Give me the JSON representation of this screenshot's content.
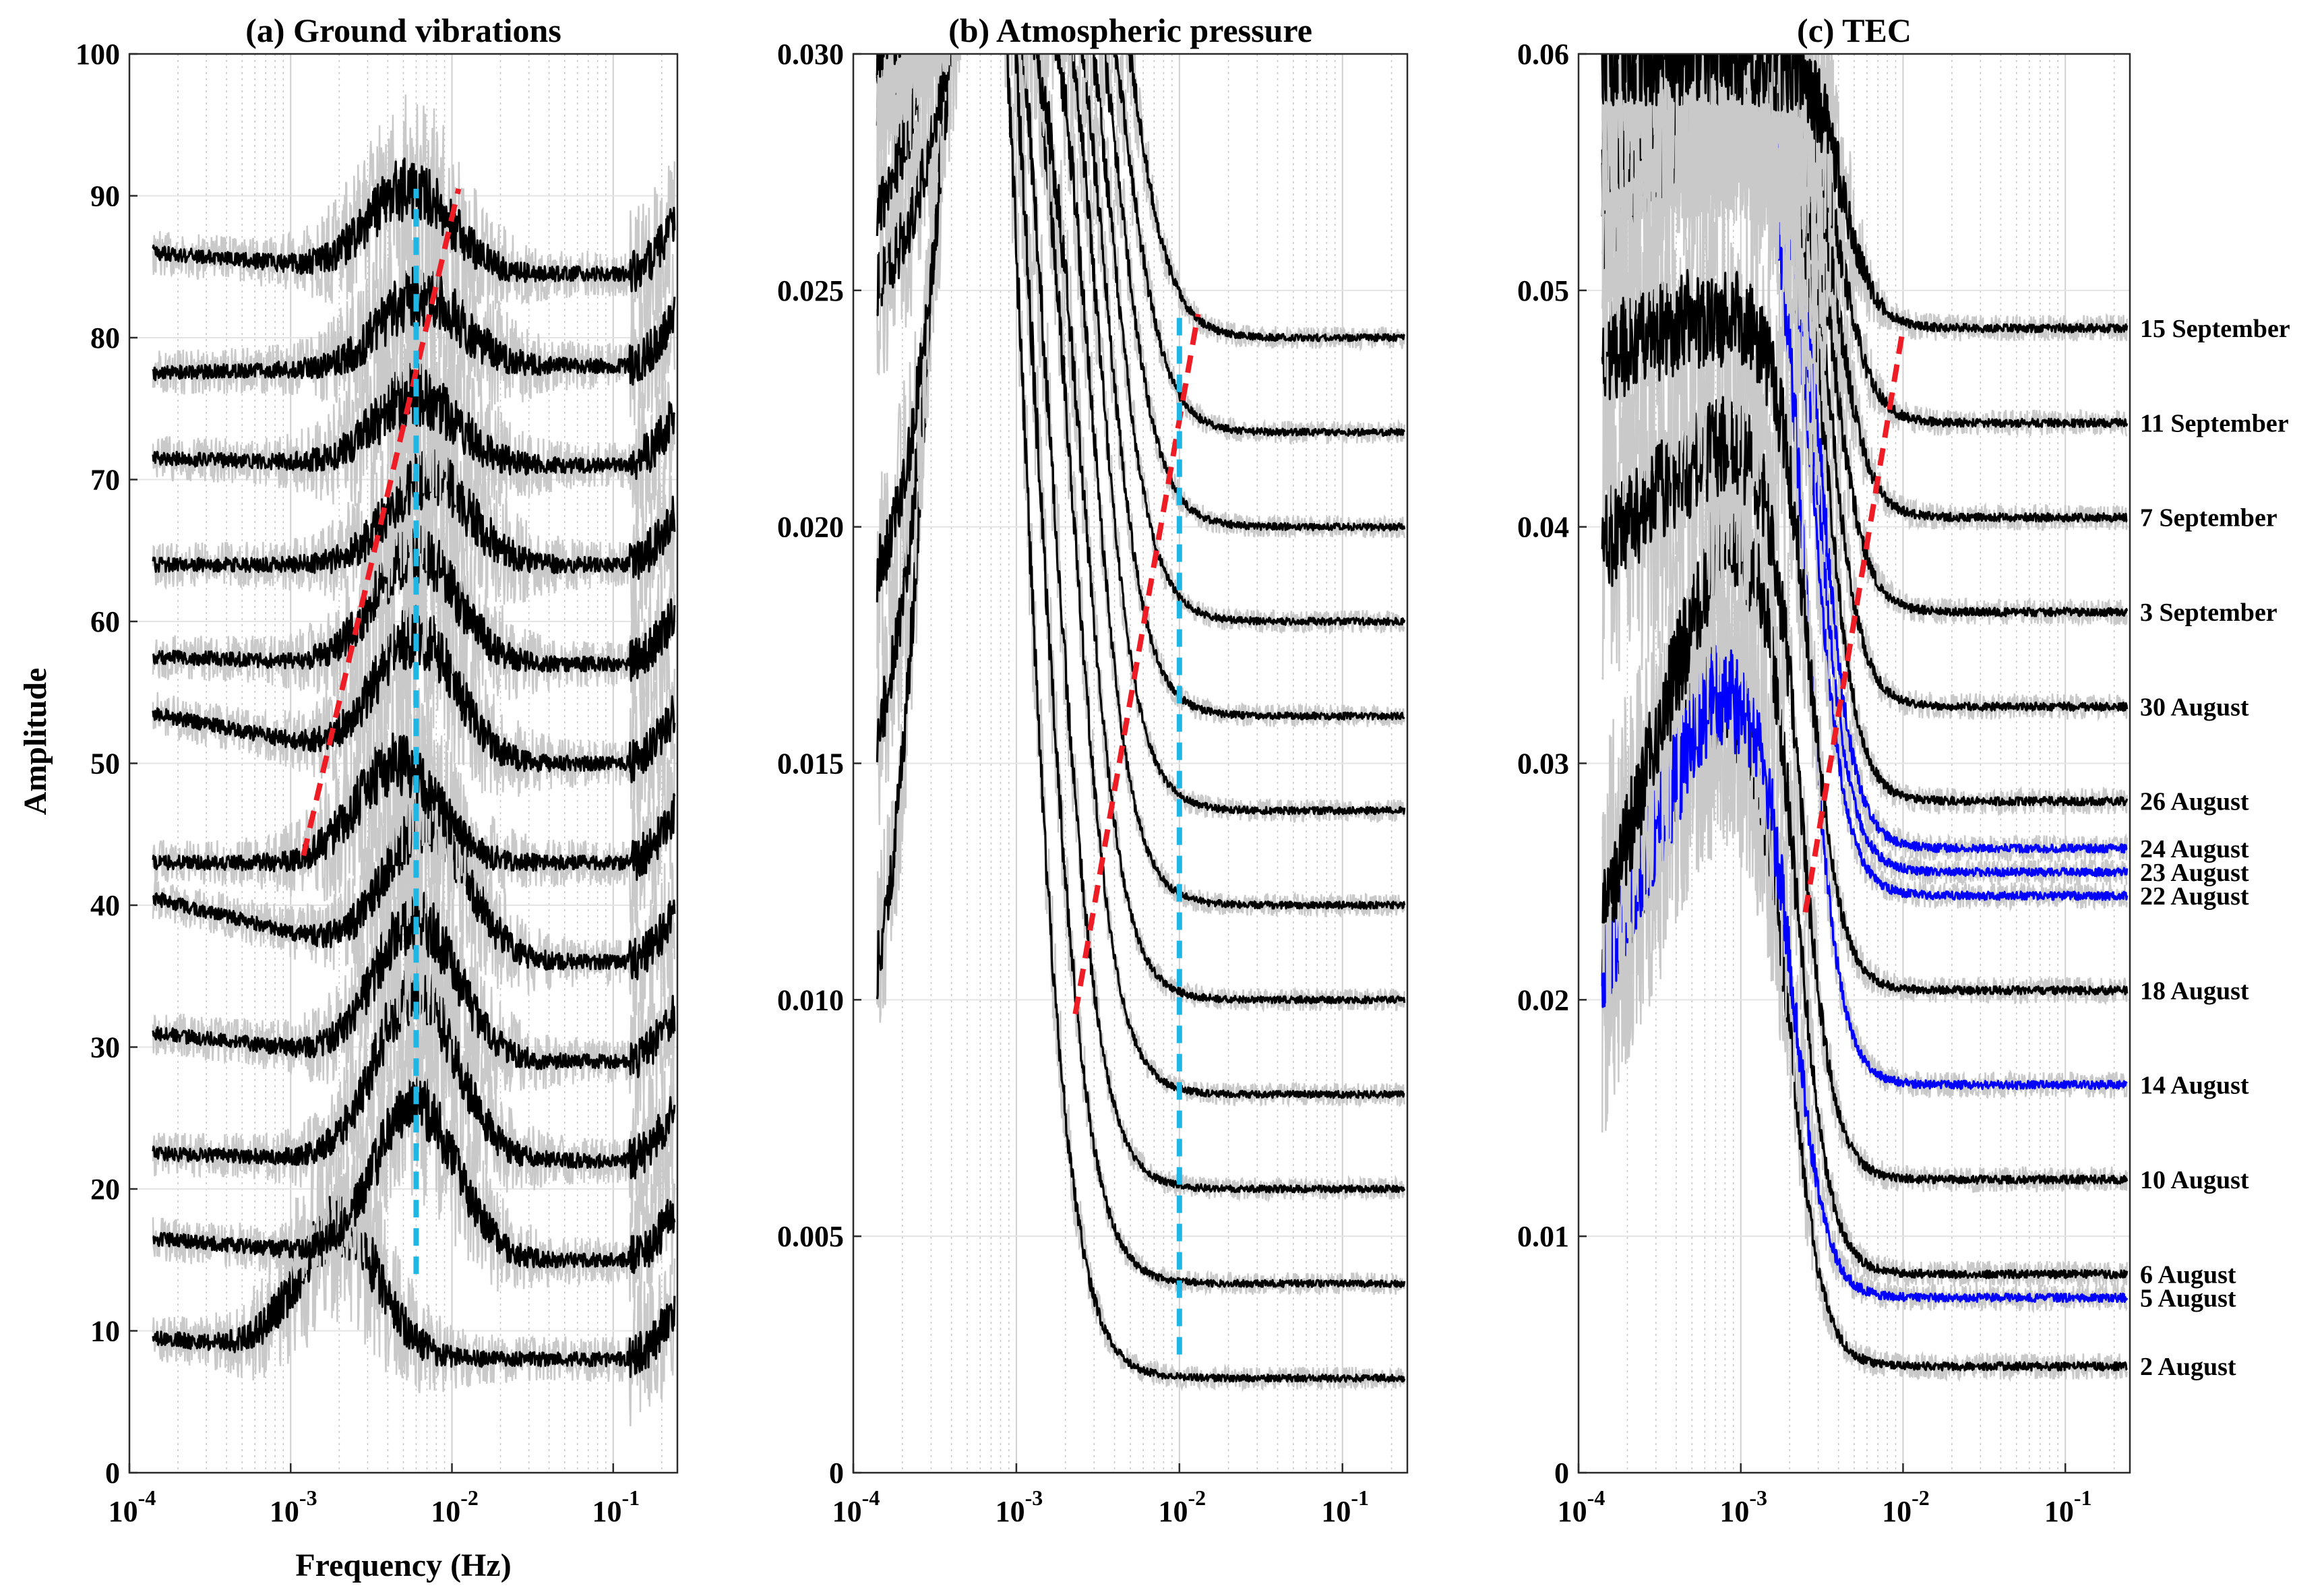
{
  "figure": {
    "ylabel": "Amplitude",
    "xlabel": "Frequency (Hz)"
  },
  "chart_data": [
    {
      "type": "line",
      "title": "(a) Ground vibrations",
      "xscale": "log",
      "xlim": [
        0.0001,
        0.25
      ],
      "ylim": [
        0,
        100
      ],
      "yticks": [
        "0",
        "10",
        "20",
        "30",
        "40",
        "50",
        "60",
        "70",
        "80",
        "90",
        "100"
      ],
      "xticks": [
        {
          "base": "10",
          "exp": "-4"
        },
        {
          "base": "10",
          "exp": "-3"
        },
        {
          "base": "10",
          "exp": "-2"
        },
        {
          "base": "10",
          "exp": "-1"
        }
      ],
      "xlabel": "Frequency (Hz)",
      "ylabel": "Amplitude",
      "series": [
        {
          "name": "2 August",
          "color": "#000000",
          "baseline": 8,
          "start": 9.5,
          "peak_freq": 0.002,
          "peak_height": 9
        },
        {
          "name": "5 August",
          "color": "#000000",
          "baseline": 15,
          "start": 16.5,
          "peak_freq": 0.006,
          "peak_height": 11
        },
        {
          "name": "6 August",
          "color": "#000000",
          "baseline": 22,
          "start": 22.5,
          "peak_freq": 0.006,
          "peak_height": 12
        },
        {
          "name": "10 August",
          "color": "#000000",
          "baseline": 29,
          "start": 31,
          "peak_freq": 0.006,
          "peak_height": 10
        },
        {
          "name": "14 August",
          "color": "#000000",
          "baseline": 36,
          "start": 40.5,
          "peak_freq": 0.007,
          "peak_height": 10
        },
        {
          "name": "18 August",
          "color": "#000000",
          "baseline": 43,
          "start": 43,
          "peak_freq": 0.0045,
          "peak_height": 7
        },
        {
          "name": "22 August",
          "color": "#000000",
          "baseline": 50,
          "start": 53.5,
          "peak_freq": 0.006,
          "peak_height": 9
        },
        {
          "name": "23 August",
          "color": "#000000",
          "baseline": 57,
          "start": 57.5,
          "peak_freq": 0.006,
          "peak_height": 8
        },
        {
          "name": "24 August",
          "color": "#000000",
          "baseline": 64,
          "start": 64,
          "peak_freq": 0.0072,
          "peak_height": 6
        },
        {
          "name": "26 August",
          "color": "#000000",
          "baseline": 71,
          "start": 71.5,
          "peak_freq": 0.006,
          "peak_height": 5
        },
        {
          "name": "30 August",
          "color": "#000000",
          "baseline": 78,
          "start": 77.5,
          "peak_freq": 0.0065,
          "peak_height": 5
        },
        {
          "name": "3 September",
          "color": "#000000",
          "baseline": 84.5,
          "start": 86,
          "peak_freq": 0.0055,
          "peak_height": 6
        }
      ],
      "trend_lines": [
        {
          "name": "red-dashed",
          "color": "#ee1c25",
          "points": [
            [
              0.0012,
              43.5
            ],
            [
              0.011,
              90.5
            ]
          ]
        },
        {
          "name": "cyan-dashed",
          "color": "#1fb6e3",
          "points": [
            [
              0.006,
              14
            ],
            [
              0.006,
              90.5
            ]
          ]
        }
      ]
    },
    {
      "type": "line",
      "title": "(b) Atmospheric pressure",
      "xscale": "log",
      "xlim": [
        0.0001,
        0.25
      ],
      "ylim": [
        0,
        0.03
      ],
      "yticks": [
        "0",
        "0.005",
        "0.010",
        "0.015",
        "0.020",
        "0.025",
        "0.030"
      ],
      "xticks": [
        {
          "base": "10",
          "exp": "-4"
        },
        {
          "base": "10",
          "exp": "-3"
        },
        {
          "base": "10",
          "exp": "-2"
        },
        {
          "base": "10",
          "exp": "-1"
        }
      ],
      "series": [
        {
          "name": "2 August",
          "color": "#000000",
          "baseline": 0.002,
          "start": 0.0093
        },
        {
          "name": "5 August",
          "color": "#000000",
          "baseline": 0.004,
          "start": 0.015
        },
        {
          "name": "6 August",
          "color": "#000000",
          "baseline": 0.006,
          "start": 0.0187
        },
        {
          "name": "10 August",
          "color": "#000000",
          "baseline": 0.008,
          "start": 0.025
        },
        {
          "name": "14 August",
          "color": "#000000",
          "baseline": 0.01,
          "start": 0.0265
        },
        {
          "name": "18 August",
          "color": "#000000",
          "baseline": 0.012,
          "start": 0.029
        },
        {
          "name": "22 August",
          "color": "#000000",
          "baseline": 0.014,
          "start": 0.03
        },
        {
          "name": "23 August",
          "color": "#000000",
          "baseline": 0.016,
          "start": 0.03
        },
        {
          "name": "24 August",
          "color": "#000000",
          "baseline": 0.018,
          "start": 0.03
        },
        {
          "name": "26 August",
          "color": "#000000",
          "baseline": 0.02,
          "start": 0.03
        },
        {
          "name": "30 August",
          "color": "#000000",
          "baseline": 0.022,
          "start": 0.03
        },
        {
          "name": "3 September",
          "color": "#000000",
          "baseline": 0.024,
          "start": 0.03
        }
      ],
      "trend_lines": [
        {
          "name": "red-dashed",
          "color": "#ee1c25",
          "points": [
            [
              0.0023,
              0.0097
            ],
            [
              0.013,
              0.0245
            ]
          ]
        },
        {
          "name": "cyan-dashed",
          "color": "#1fb6e3",
          "points": [
            [
              0.01,
              0.0025
            ],
            [
              0.01,
              0.0245
            ]
          ]
        }
      ]
    },
    {
      "type": "line",
      "title": "(c) TEC",
      "xscale": "log",
      "xlim": [
        0.0001,
        0.25
      ],
      "ylim": [
        0,
        0.06
      ],
      "yticks": [
        "0",
        "0.01",
        "0.02",
        "0.03",
        "0.04",
        "0.05",
        "0.06"
      ],
      "xticks": [
        {
          "base": "10",
          "exp": "-4"
        },
        {
          "base": "10",
          "exp": "-3"
        },
        {
          "base": "10",
          "exp": "-2"
        },
        {
          "base": "10",
          "exp": "-1"
        }
      ],
      "series": [
        {
          "name": "2 August",
          "color": "#000000",
          "baseline": 0.0045,
          "start": 0.021,
          "peak": 0.033
        },
        {
          "name": "5 August",
          "color": "#0000ff",
          "baseline": 0.0074,
          "start": 0.0215,
          "peak": 0.0332
        },
        {
          "name": "6 August",
          "color": "#000000",
          "baseline": 0.0084,
          "start": 0.0236,
          "peak": 0.04
        },
        {
          "name": "10 August",
          "color": "#000000",
          "baseline": 0.0124,
          "start": 0.0393,
          "peak": 0.044
        },
        {
          "name": "14 August",
          "color": "#0000ff",
          "baseline": 0.0164,
          "start": 0.06,
          "peak": 0.06
        },
        {
          "name": "18 August",
          "color": "#000000",
          "baseline": 0.0204,
          "start": 0.0473,
          "peak": 0.049
        },
        {
          "name": "22 August",
          "color": "#0000ff",
          "baseline": 0.0244,
          "start": 0.06,
          "peak": 0.06
        },
        {
          "name": "23 August",
          "color": "#0000ff",
          "baseline": 0.0254,
          "start": 0.06,
          "peak": 0.06
        },
        {
          "name": "24 August",
          "color": "#0000ff",
          "baseline": 0.0264,
          "start": 0.06,
          "peak": 0.06
        },
        {
          "name": "26 August",
          "color": "#000000",
          "baseline": 0.0284,
          "start": 0.053,
          "peak": 0.06
        },
        {
          "name": "30 August",
          "color": "#000000",
          "baseline": 0.0324,
          "start": 0.0552,
          "peak": 0.06
        },
        {
          "name": "3 September",
          "color": "#000000",
          "baseline": 0.0364,
          "start": 0.0557,
          "peak": 0.06
        },
        {
          "name": "7 September",
          "color": "#000000",
          "baseline": 0.0404,
          "start": 0.06,
          "peak": 0.06
        },
        {
          "name": "11 September",
          "color": "#000000",
          "baseline": 0.0444,
          "start": 0.06,
          "peak": 0.06
        },
        {
          "name": "15 September",
          "color": "#000000",
          "baseline": 0.0484,
          "start": 0.06,
          "peak": 0.06
        }
      ],
      "day_labels": [
        {
          "text": "15 September",
          "value": 0.0484
        },
        {
          "text": "11 September",
          "value": 0.0444
        },
        {
          "text": "7 September",
          "value": 0.0404
        },
        {
          "text": "3 September",
          "value": 0.0364
        },
        {
          "text": "30 August",
          "value": 0.0324
        },
        {
          "text": "26 August",
          "value": 0.0284
        },
        {
          "text": "24 August",
          "value": 0.0264
        },
        {
          "text": "23 August",
          "value": 0.0254
        },
        {
          "text": "22 August",
          "value": 0.0244
        },
        {
          "text": "18 August",
          "value": 0.0204
        },
        {
          "text": "14 August",
          "value": 0.0164
        },
        {
          "text": "10 August",
          "value": 0.0124
        },
        {
          "text": "6 August",
          "value": 0.0084
        },
        {
          "text": "5 August",
          "value": 0.0074
        },
        {
          "text": "2 August",
          "value": 0.0045
        }
      ],
      "trend_lines": [
        {
          "name": "red-dashed",
          "color": "#ee1c25",
          "points": [
            [
              0.0025,
              0.0237
            ],
            [
              0.01,
              0.0484
            ]
          ]
        }
      ]
    }
  ]
}
